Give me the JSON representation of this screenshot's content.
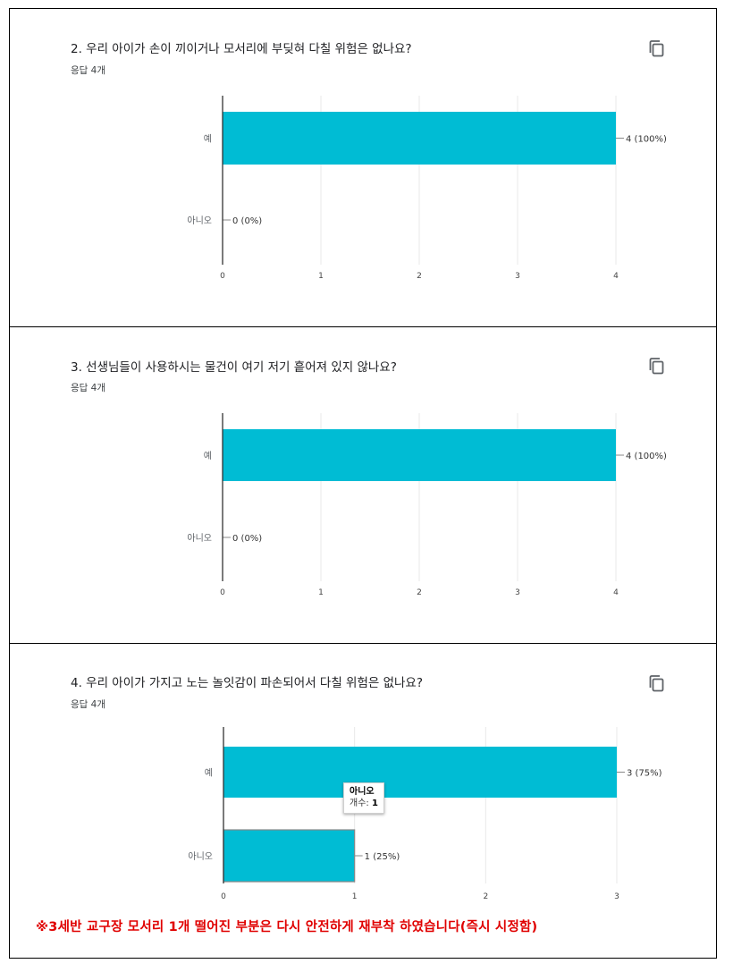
{
  "chart_data": [
    {
      "type": "bar",
      "orientation": "horizontal",
      "title": "2. 우리 아이가 손이 끼이거나 모서리에 부딪혀 다칠 위험은 없나요?",
      "response_count": "응답 4개",
      "categories": [
        "예",
        "아니오"
      ],
      "values": [
        4,
        0
      ],
      "value_labels": [
        "4 (100%)",
        "0 (0%)"
      ],
      "xlim": [
        0,
        4
      ],
      "x_ticks": [
        0,
        1,
        2,
        3,
        4
      ],
      "grid": true,
      "bar_color": "#00bcd4"
    },
    {
      "type": "bar",
      "orientation": "horizontal",
      "title": "3. 선생님들이 사용하시는 물건이 여기 저기 흩어져 있지 않나요?",
      "response_count": "응답 4개",
      "categories": [
        "예",
        "아니오"
      ],
      "values": [
        4,
        0
      ],
      "value_labels": [
        "4 (100%)",
        "0 (0%)"
      ],
      "xlim": [
        0,
        4
      ],
      "x_ticks": [
        0,
        1,
        2,
        3,
        4
      ],
      "grid": true,
      "bar_color": "#00bcd4"
    },
    {
      "type": "bar",
      "orientation": "horizontal",
      "title": "4. 우리 아이가 가지고 노는 놀잇감이 파손되어서 다칠 위험은 없나요?",
      "response_count": "응답 4개",
      "categories": [
        "예",
        "아니오"
      ],
      "values": [
        3,
        1
      ],
      "value_labels": [
        "3 (75%)",
        "1 (25%)"
      ],
      "xlim": [
        0,
        3
      ],
      "x_ticks": [
        0,
        1,
        2,
        3
      ],
      "grid": true,
      "bar_color": "#00bcd4",
      "highlighted_index": 1,
      "tooltip": {
        "title": "아니오",
        "label": "개수: ",
        "value": "1"
      }
    }
  ],
  "note": "※3세반 교구장 모서리 1개 떨어진 부분은 다시 안전하게 재부착 하였습니다(즉시 시정함)",
  "icons": {
    "copy": "copy-icon"
  }
}
